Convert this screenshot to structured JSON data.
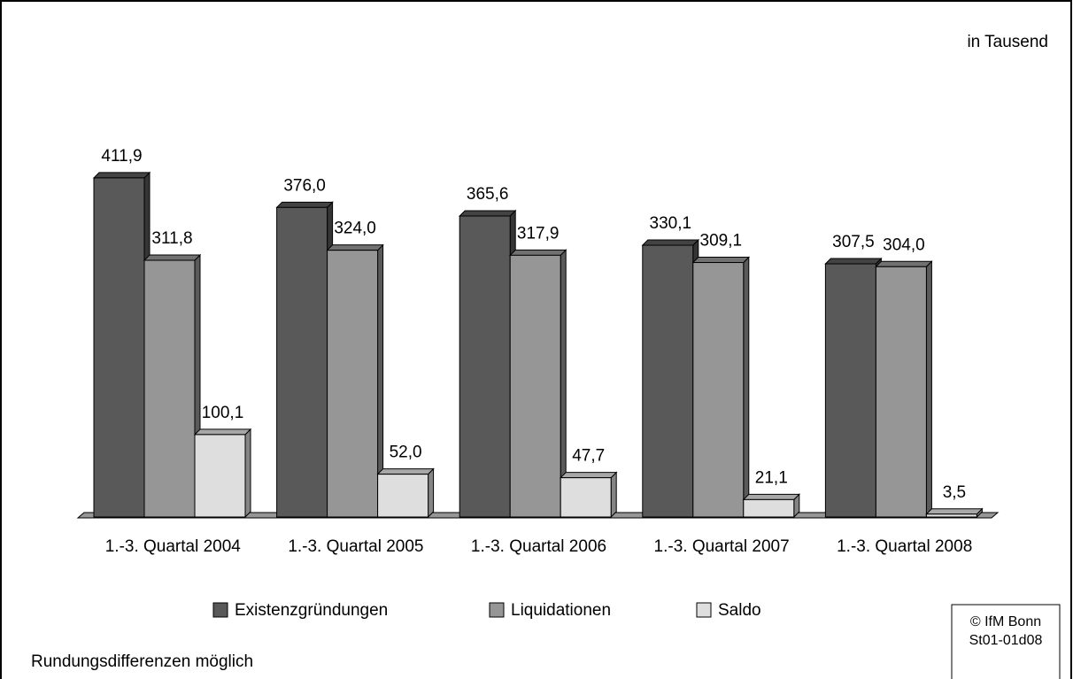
{
  "chart_data": {
    "type": "bar",
    "unit_note": "in Tausend",
    "categories": [
      "1.-3. Quartal 2004",
      "1.-3. Quartal 2005",
      "1.-3. Quartal 2006",
      "1.-3. Quartal 2007",
      "1.-3. Quartal 2008"
    ],
    "series": [
      {
        "name": "Existenzgründungen",
        "color": "#595959",
        "values": [
          411.9,
          376.0,
          365.6,
          330.1,
          307.5
        ],
        "value_labels": [
          "411,9",
          "376,0",
          "365,6",
          "330,1",
          "307,5"
        ]
      },
      {
        "name": "Liquidationen",
        "color": "#969696",
        "values": [
          311.8,
          324.0,
          317.9,
          309.1,
          304.0
        ],
        "value_labels": [
          "311,8",
          "324,0",
          "317,9",
          "309,1",
          "304,0"
        ]
      },
      {
        "name": "Saldo",
        "color": "#dedede",
        "values": [
          100.1,
          52.0,
          47.7,
          21.1,
          3.5
        ],
        "value_labels": [
          "100,1",
          "52,0",
          "47,7",
          "21,1",
          "3,5"
        ]
      }
    ],
    "legend": "bottom",
    "footnote": "Rundungsdifferenzen möglich",
    "source": [
      "© IfM Bonn",
      "St01-01d08"
    ]
  }
}
